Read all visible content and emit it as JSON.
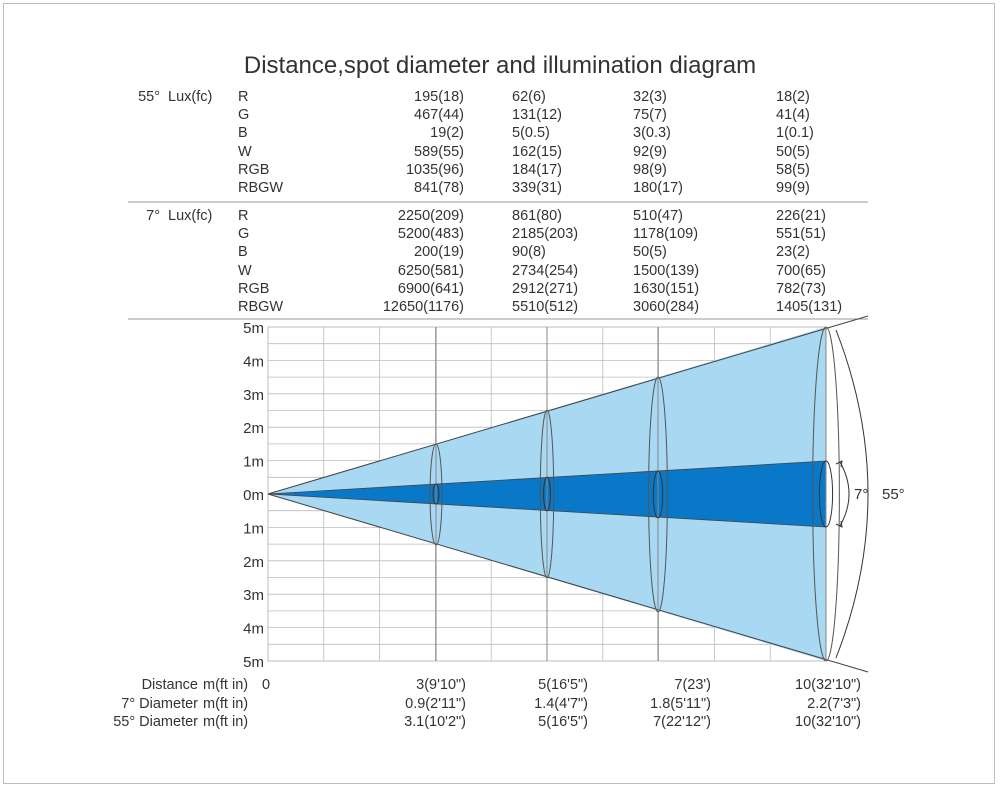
{
  "title": "Distance,spot diameter and illumination diagram",
  "colors": {
    "wide_beam": "#a8d8f2",
    "narrow_beam": "#0a78c8",
    "text": "#333333",
    "grid": "#bcbcbc"
  },
  "sections": [
    {
      "angle_label": "55°",
      "unit_label": "Lux(fc)",
      "rows": [
        {
          "channel": "R",
          "values": [
            "195(18)",
            "62(6)",
            "32(3)",
            "18(2)"
          ]
        },
        {
          "channel": "G",
          "values": [
            "467(44)",
            "131(12)",
            "75(7)",
            "41(4)"
          ]
        },
        {
          "channel": "B",
          "values": [
            "19(2)",
            "5(0.5)",
            "3(0.3)",
            "1(0.1)"
          ]
        },
        {
          "channel": "W",
          "values": [
            "589(55)",
            "162(15)",
            "92(9)",
            "50(5)"
          ]
        },
        {
          "channel": "RGB",
          "values": [
            "1035(96)",
            "184(17)",
            "98(9)",
            "58(5)"
          ]
        },
        {
          "channel": "RBGW",
          "values": [
            "841(78)",
            "339(31)",
            "180(17)",
            "99(9)"
          ]
        }
      ]
    },
    {
      "angle_label": "7°",
      "unit_label": "Lux(fc)",
      "rows": [
        {
          "channel": "R",
          "values": [
            "2250(209)",
            "861(80)",
            "510(47)",
            "226(21)"
          ]
        },
        {
          "channel": "G",
          "values": [
            "5200(483)",
            "2185(203)",
            "1178(109)",
            "551(51)"
          ]
        },
        {
          "channel": "B",
          "values": [
            "200(19)",
            "90(8)",
            "50(5)",
            "23(2)"
          ]
        },
        {
          "channel": "W",
          "values": [
            "6250(581)",
            "2734(254)",
            "1500(139)",
            "700(65)"
          ]
        },
        {
          "channel": "RGB",
          "values": [
            "6900(641)",
            "2912(271)",
            "1630(151)",
            "782(73)"
          ]
        },
        {
          "channel": "RBGW",
          "values": [
            "12650(1176)",
            "5510(512)",
            "3060(284)",
            "1405(131)"
          ]
        }
      ]
    }
  ],
  "axis": {
    "ticks": [
      "5m",
      "4m",
      "3m",
      "2m",
      "1m",
      "0m",
      "1m",
      "2m",
      "3m",
      "4m",
      "5m"
    ]
  },
  "beam_labels": {
    "narrow": "7°",
    "wide": "55°"
  },
  "bottom_rows": [
    {
      "label": "Distance",
      "unit": "m(ft in)",
      "start": "0",
      "values": [
        "3(9'10\")",
        "5(16'5\")",
        "7(23')",
        "10(32'10\")"
      ]
    },
    {
      "label": "7°  Diameter",
      "unit": "m(ft in)",
      "start": "",
      "values": [
        "0.9(2'11\")",
        "1.4(4'7\")",
        "1.8(5'11\")",
        "2.2(7'3\")"
      ]
    },
    {
      "label": "55°  Diameter",
      "unit": "m(ft in)",
      "start": "",
      "values": [
        "3.1(10'2\")",
        "5(16'5\")",
        "7(22'12\")",
        "10(32'10\")"
      ]
    }
  ]
}
